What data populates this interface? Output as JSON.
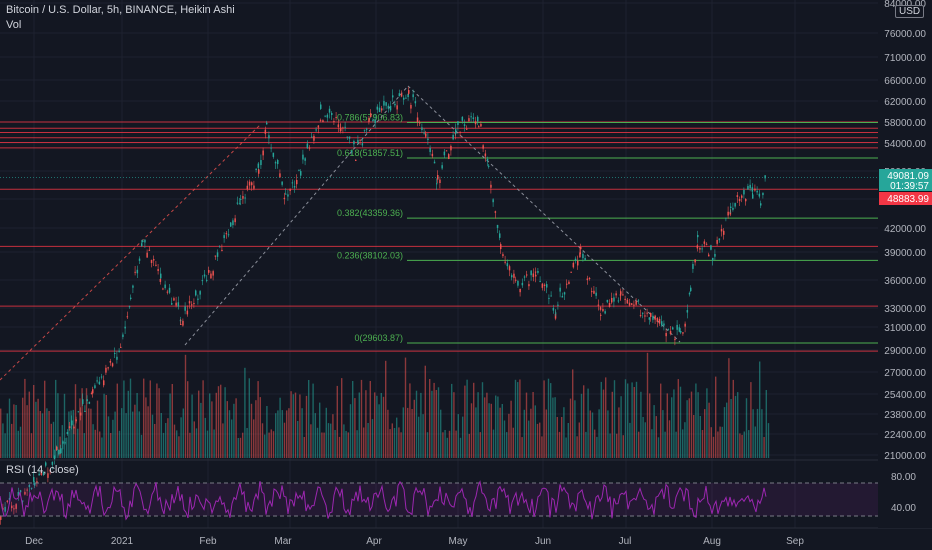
{
  "header": {
    "title": "Bitcoin / U.S. Dollar, 5h, BINANCE, Heikin Ashi",
    "volume_label": "Vol",
    "currency": "USD",
    "rsi_label": "RSI (14, close)"
  },
  "colors": {
    "background": "#131722",
    "up": "#26a69a",
    "down": "#ef5350",
    "resistance": "#f23645",
    "fib": "#4caf50",
    "rsi": "#9c27b0",
    "price_tag": "#26a69a",
    "alert_tag": "#f23645"
  },
  "chart_data": {
    "type": "candlestick",
    "price_axis": [
      "84000.00",
      "76000.00",
      "71000.00",
      "66000.00",
      "62000.00",
      "58000.00",
      "54000.00",
      "50000.00",
      "46000.00",
      "42000.00",
      "39000.00",
      "36000.00",
      "33000.00",
      "31000.00",
      "29000.00",
      "27000.00",
      "25400.00",
      "23800.00",
      "22400.00",
      "21000.00"
    ],
    "x_axis": [
      "Dec",
      "2021",
      "Feb",
      "Mar",
      "Apr",
      "May",
      "Jun",
      "Jul",
      "Aug",
      "Sep"
    ],
    "rsi_axis": [
      "80.00",
      "40.00"
    ],
    "rsi_bands": [
      70,
      30
    ],
    "current_price": "49081.09",
    "countdown": "01:39:57",
    "alert_price": "48883.99",
    "fib_levels": [
      {
        "label": "0(29603.87)",
        "value": 29603.87
      },
      {
        "label": "0.236(38102.03)",
        "value": 38102.03
      },
      {
        "label": "0.382(43359.36)",
        "value": 43359.36
      },
      {
        "label": "0.618(51857.51)",
        "value": 51857.51
      },
      {
        "label": "0.786(57906.83)",
        "value": 57906.83
      }
    ],
    "horizontal_levels": [
      28900,
      33200,
      39700,
      47400,
      53300,
      54100,
      55000,
      56000,
      56800,
      58000
    ],
    "price_path": [
      {
        "x": "late Nov",
        "close": 17500
      },
      {
        "x": "Dec",
        "close": 19000
      },
      {
        "x": "mid Dec",
        "close": 21500
      },
      {
        "x": "late Dec",
        "close": 25500
      },
      {
        "x": "2021",
        "close": 29000
      },
      {
        "x": "early Jan",
        "close": 34000
      },
      {
        "x": "Jan 8",
        "close": 40500
      },
      {
        "x": "mid Jan",
        "close": 36000
      },
      {
        "x": "Jan 22",
        "close": 32000
      },
      {
        "x": "late Jan",
        "close": 34000
      },
      {
        "x": "Feb",
        "close": 36500
      },
      {
        "x": "Feb 8",
        "close": 45500
      },
      {
        "x": "mid Feb",
        "close": 50000
      },
      {
        "x": "Feb 21",
        "close": 57000
      },
      {
        "x": "late Feb",
        "close": 46000
      },
      {
        "x": "Mar",
        "close": 50000
      },
      {
        "x": "mid Mar",
        "close": 59500
      },
      {
        "x": "Mar 20",
        "close": 57500
      },
      {
        "x": "Mar 25",
        "close": 52500
      },
      {
        "x": "Apr",
        "close": 58500
      },
      {
        "x": "Apr 14",
        "close": 63500
      },
      {
        "x": "Apr 18",
        "close": 56000
      },
      {
        "x": "Apr 25",
        "close": 48500
      },
      {
        "x": "May",
        "close": 57000
      },
      {
        "x": "May 10",
        "close": 58500
      },
      {
        "x": "May 13",
        "close": 50000
      },
      {
        "x": "May 19",
        "close": 40000
      },
      {
        "x": "late May",
        "close": 35500
      },
      {
        "x": "Jun",
        "close": 36500
      },
      {
        "x": "Jun 8",
        "close": 33000
      },
      {
        "x": "mid Jun",
        "close": 39000
      },
      {
        "x": "Jun 22",
        "close": 32500
      },
      {
        "x": "Jul",
        "close": 34500
      },
      {
        "x": "mid Jul",
        "close": 32000
      },
      {
        "x": "Jul 20",
        "close": 30000
      },
      {
        "x": "Jul 25",
        "close": 35000
      },
      {
        "x": "Jul 30",
        "close": 40500
      },
      {
        "x": "Aug 3",
        "close": 38500
      },
      {
        "x": "Aug 8",
        "close": 45000
      },
      {
        "x": "Aug 12",
        "close": 46500
      },
      {
        "x": "Aug 16",
        "close": 47000
      },
      {
        "x": "Aug 19",
        "close": 46000
      },
      {
        "x": "Aug 21",
        "close": 49081
      }
    ]
  }
}
